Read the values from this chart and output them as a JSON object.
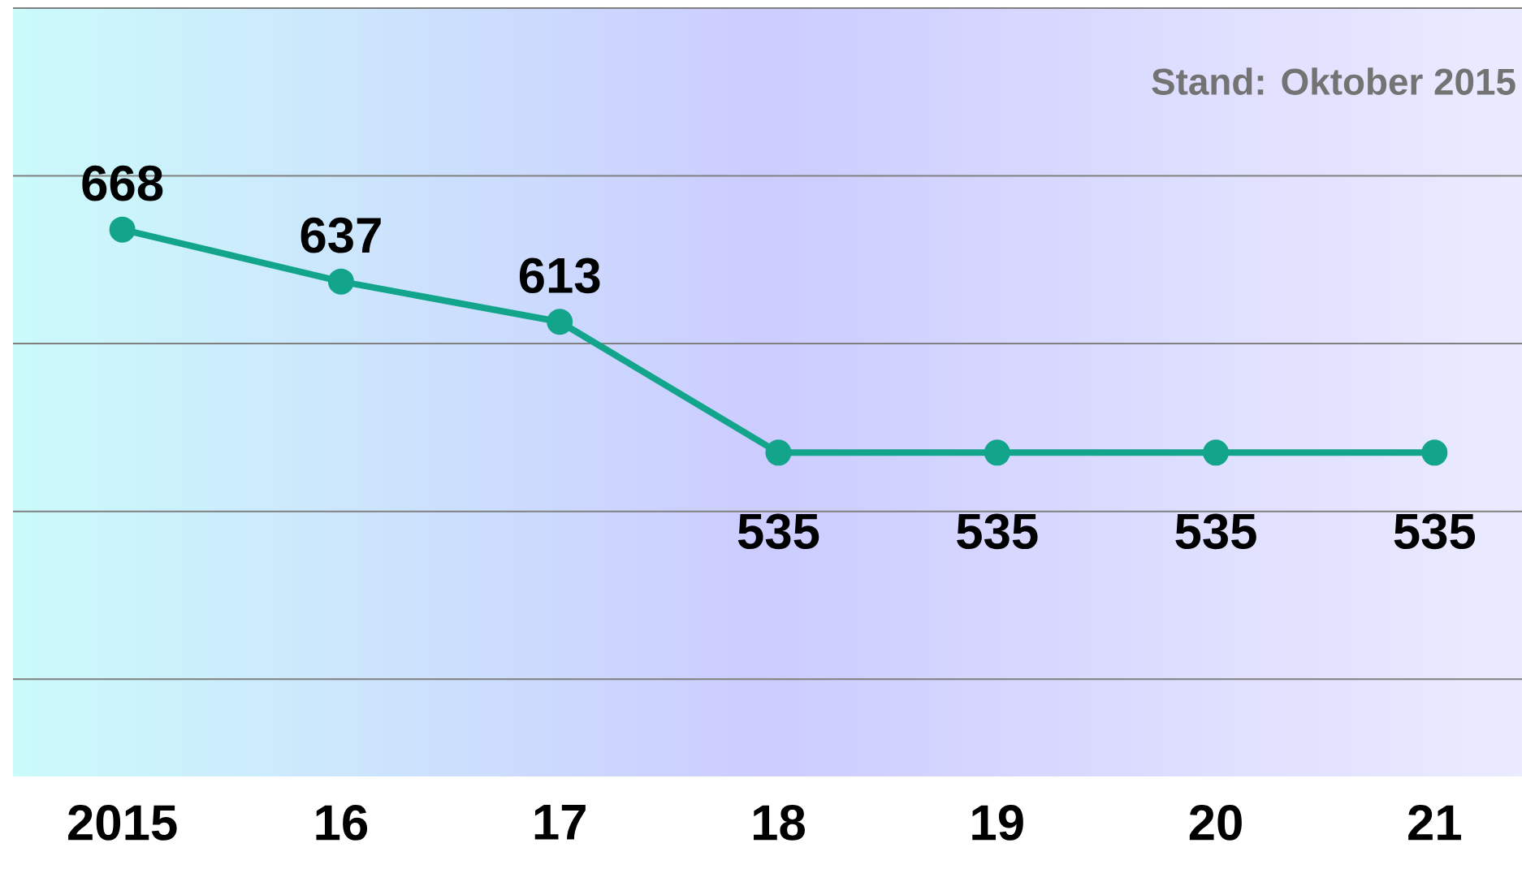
{
  "chart_data": {
    "type": "line",
    "categories": [
      "2015",
      "16",
      "17",
      "18",
      "19",
      "20",
      "21"
    ],
    "values": [
      668,
      637,
      613,
      535,
      535,
      535,
      535
    ],
    "color": "#12a58c",
    "data_labels": true,
    "marker": "circle",
    "ylim": [
      342,
      800
    ],
    "yticks": [
      {
        "value": 400,
        "label": null
      },
      {
        "value": 500,
        "label": null
      },
      {
        "value": 600,
        "label": null
      },
      {
        "value": 700,
        "label": null
      },
      {
        "value": 800,
        "label": null
      }
    ],
    "tick_labels": "x",
    "grid": "y",
    "annotations": [
      "Stand: Oktober 2015"
    ]
  }
}
